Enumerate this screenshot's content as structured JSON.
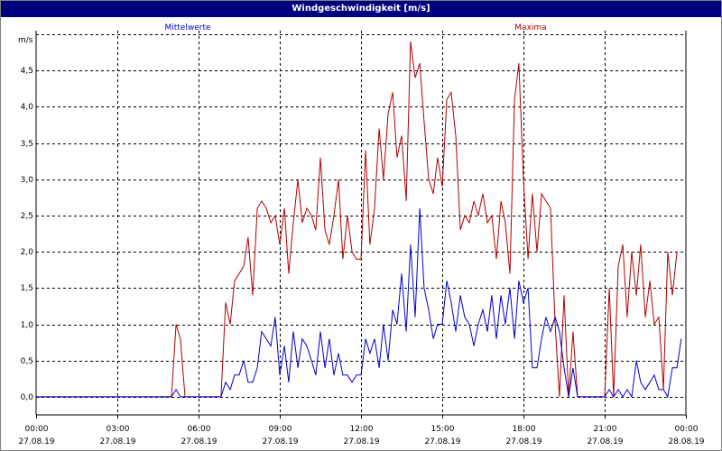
{
  "window": {
    "title": "Windgeschwindigkeit [m/s]"
  },
  "colors": {
    "mean": "#0000cc",
    "max": "#b00000",
    "grid": "#000000",
    "title_bg": "#00007f"
  },
  "chart_data": {
    "type": "line",
    "title": "Windgeschwindigkeit [m/s]",
    "ylabel": "m/s",
    "xlabel": "",
    "ylim": [
      -0.25,
      5.05
    ],
    "y_ticks": [
      0.0,
      0.5,
      1.0,
      1.5,
      2.0,
      2.5,
      3.0,
      3.5,
      4.0,
      4.5
    ],
    "y_tick_labels": [
      "0,0",
      "0,5",
      "1,0",
      "1,5",
      "2,0",
      "2,5",
      "3,0",
      "3,5",
      "4,0",
      "4,5"
    ],
    "xlim_hours": [
      0,
      24
    ],
    "x_ticks_hours": [
      0,
      3,
      6,
      9,
      12,
      15,
      18,
      21,
      24
    ],
    "x_tick_labels": [
      {
        "time": "00:00",
        "date": "27.08.19"
      },
      {
        "time": "03:00",
        "date": "27.08.19"
      },
      {
        "time": "06:00",
        "date": "27.08.19"
      },
      {
        "time": "09:00",
        "date": "27.08.19"
      },
      {
        "time": "12:00",
        "date": "27.08.19"
      },
      {
        "time": "15:00",
        "date": "27.08.19"
      },
      {
        "time": "18:00",
        "date": "27.08.19"
      },
      {
        "time": "21:00",
        "date": "27.08.19"
      },
      {
        "time": "00:00",
        "date": "28.08.19"
      }
    ],
    "grid": true,
    "legend": [
      "Mittelwerte",
      "Maxima"
    ],
    "series": [
      {
        "name": "Mittelwerte",
        "color": "#0000cc",
        "points": [
          [
            0,
            0
          ],
          [
            5.0,
            0
          ],
          [
            5.17,
            0.1
          ],
          [
            5.33,
            0
          ],
          [
            6.0,
            0
          ],
          [
            6.83,
            0
          ],
          [
            7.0,
            0.2
          ],
          [
            7.17,
            0.1
          ],
          [
            7.33,
            0.3
          ],
          [
            7.5,
            0.3
          ],
          [
            7.67,
            0.5
          ],
          [
            7.83,
            0.2
          ],
          [
            8.0,
            0.2
          ],
          [
            8.17,
            0.4
          ],
          [
            8.33,
            0.9
          ],
          [
            8.5,
            0.8
          ],
          [
            8.67,
            0.7
          ],
          [
            8.83,
            1.1
          ],
          [
            9.0,
            0.3
          ],
          [
            9.17,
            0.7
          ],
          [
            9.33,
            0.2
          ],
          [
            9.5,
            0.9
          ],
          [
            9.67,
            0.4
          ],
          [
            9.83,
            0.8
          ],
          [
            10.0,
            0.7
          ],
          [
            10.17,
            0.5
          ],
          [
            10.33,
            0.3
          ],
          [
            10.5,
            0.9
          ],
          [
            10.67,
            0.4
          ],
          [
            10.83,
            0.8
          ],
          [
            11.0,
            0.3
          ],
          [
            11.17,
            0.6
          ],
          [
            11.33,
            0.3
          ],
          [
            11.5,
            0.3
          ],
          [
            11.67,
            0.2
          ],
          [
            11.83,
            0.3
          ],
          [
            12.0,
            0.3
          ],
          [
            12.17,
            0.8
          ],
          [
            12.33,
            0.6
          ],
          [
            12.5,
            0.8
          ],
          [
            12.67,
            0.4
          ],
          [
            12.83,
            1.0
          ],
          [
            13.0,
            0.5
          ],
          [
            13.17,
            1.2
          ],
          [
            13.33,
            1.0
          ],
          [
            13.5,
            1.7
          ],
          [
            13.67,
            0.9
          ],
          [
            13.83,
            2.1
          ],
          [
            14.0,
            1.1
          ],
          [
            14.17,
            2.6
          ],
          [
            14.33,
            1.5
          ],
          [
            14.5,
            1.2
          ],
          [
            14.67,
            0.8
          ],
          [
            14.83,
            1.0
          ],
          [
            15.0,
            1.0
          ],
          [
            15.17,
            1.6
          ],
          [
            15.33,
            1.3
          ],
          [
            15.5,
            0.9
          ],
          [
            15.67,
            1.4
          ],
          [
            15.83,
            1.1
          ],
          [
            16.0,
            1.0
          ],
          [
            16.17,
            0.7
          ],
          [
            16.33,
            1.0
          ],
          [
            16.5,
            1.2
          ],
          [
            16.67,
            0.9
          ],
          [
            16.83,
            1.4
          ],
          [
            17.0,
            0.8
          ],
          [
            17.17,
            1.4
          ],
          [
            17.33,
            1.0
          ],
          [
            17.5,
            1.5
          ],
          [
            17.67,
            0.8
          ],
          [
            17.83,
            1.6
          ],
          [
            18.0,
            1.3
          ],
          [
            18.17,
            1.5
          ],
          [
            18.33,
            0.4
          ],
          [
            18.5,
            0.4
          ],
          [
            18.67,
            0.8
          ],
          [
            18.83,
            1.1
          ],
          [
            19.0,
            0.9
          ],
          [
            19.17,
            1.1
          ],
          [
            19.33,
            0.9
          ],
          [
            19.5,
            0.4
          ],
          [
            19.67,
            0
          ],
          [
            19.83,
            0.4
          ],
          [
            20.0,
            0
          ],
          [
            20.5,
            0
          ],
          [
            21.0,
            0
          ],
          [
            21.17,
            0.1
          ],
          [
            21.33,
            0
          ],
          [
            21.5,
            0.1
          ],
          [
            21.67,
            0
          ],
          [
            21.83,
            0.1
          ],
          [
            22.0,
            0
          ],
          [
            22.17,
            0.5
          ],
          [
            22.33,
            0.2
          ],
          [
            22.5,
            0.1
          ],
          [
            22.67,
            0.2
          ],
          [
            22.83,
            0.3
          ],
          [
            23.0,
            0.1
          ],
          [
            23.17,
            0.1
          ],
          [
            23.33,
            0
          ],
          [
            23.5,
            0.4
          ],
          [
            23.67,
            0.4
          ],
          [
            23.83,
            0.8
          ]
        ]
      },
      {
        "name": "Maxima",
        "color": "#b00000",
        "points": [
          [
            0,
            0
          ],
          [
            5.0,
            0
          ],
          [
            5.17,
            1.0
          ],
          [
            5.33,
            0.8
          ],
          [
            5.5,
            0
          ],
          [
            6.0,
            0
          ],
          [
            6.83,
            0
          ],
          [
            7.0,
            1.3
          ],
          [
            7.17,
            1.0
          ],
          [
            7.33,
            1.6
          ],
          [
            7.5,
            1.7
          ],
          [
            7.67,
            1.8
          ],
          [
            7.83,
            2.2
          ],
          [
            8.0,
            1.4
          ],
          [
            8.17,
            2.6
          ],
          [
            8.33,
            2.7
          ],
          [
            8.5,
            2.6
          ],
          [
            8.67,
            2.4
          ],
          [
            8.83,
            2.5
          ],
          [
            9.0,
            2.1
          ],
          [
            9.17,
            2.6
          ],
          [
            9.33,
            1.7
          ],
          [
            9.5,
            2.4
          ],
          [
            9.67,
            3.0
          ],
          [
            9.83,
            2.4
          ],
          [
            10.0,
            2.6
          ],
          [
            10.17,
            2.5
          ],
          [
            10.33,
            2.3
          ],
          [
            10.5,
            3.3
          ],
          [
            10.67,
            2.3
          ],
          [
            10.83,
            2.1
          ],
          [
            11.0,
            2.5
          ],
          [
            11.17,
            3.0
          ],
          [
            11.33,
            1.9
          ],
          [
            11.5,
            2.5
          ],
          [
            11.67,
            2.0
          ],
          [
            11.83,
            1.9
          ],
          [
            12.0,
            1.9
          ],
          [
            12.17,
            3.4
          ],
          [
            12.33,
            2.1
          ],
          [
            12.5,
            2.6
          ],
          [
            12.67,
            3.7
          ],
          [
            12.83,
            3.0
          ],
          [
            13.0,
            3.9
          ],
          [
            13.17,
            4.2
          ],
          [
            13.33,
            3.3
          ],
          [
            13.5,
            3.6
          ],
          [
            13.67,
            2.7
          ],
          [
            13.83,
            4.9
          ],
          [
            14.0,
            4.4
          ],
          [
            14.17,
            4.6
          ],
          [
            14.33,
            3.8
          ],
          [
            14.5,
            3.0
          ],
          [
            14.67,
            2.8
          ],
          [
            14.83,
            3.3
          ],
          [
            15.0,
            2.9
          ],
          [
            15.17,
            4.1
          ],
          [
            15.33,
            4.2
          ],
          [
            15.5,
            3.6
          ],
          [
            15.67,
            2.3
          ],
          [
            15.83,
            2.5
          ],
          [
            16.0,
            2.4
          ],
          [
            16.17,
            2.7
          ],
          [
            16.33,
            2.5
          ],
          [
            16.5,
            2.8
          ],
          [
            16.67,
            2.4
          ],
          [
            16.83,
            2.5
          ],
          [
            17.0,
            1.9
          ],
          [
            17.17,
            2.7
          ],
          [
            17.33,
            2.4
          ],
          [
            17.5,
            1.7
          ],
          [
            17.67,
            4.1
          ],
          [
            17.83,
            4.6
          ],
          [
            18.0,
            3.0
          ],
          [
            18.17,
            1.9
          ],
          [
            18.33,
            2.8
          ],
          [
            18.5,
            2.0
          ],
          [
            18.67,
            2.8
          ],
          [
            18.83,
            2.7
          ],
          [
            19.0,
            2.6
          ],
          [
            19.17,
            1.0
          ],
          [
            19.33,
            0
          ],
          [
            19.5,
            1.4
          ],
          [
            19.67,
            0
          ],
          [
            19.83,
            0.9
          ],
          [
            20.0,
            0
          ],
          [
            20.5,
            0
          ],
          [
            21.0,
            0
          ],
          [
            21.17,
            1.5
          ],
          [
            21.33,
            0
          ],
          [
            21.5,
            1.8
          ],
          [
            21.67,
            2.1
          ],
          [
            21.83,
            1.1
          ],
          [
            22.0,
            2.0
          ],
          [
            22.17,
            1.4
          ],
          [
            22.33,
            2.1
          ],
          [
            22.5,
            1.1
          ],
          [
            22.67,
            1.6
          ],
          [
            22.83,
            1.0
          ],
          [
            23.0,
            1.1
          ],
          [
            23.17,
            0.1
          ],
          [
            23.33,
            2.0
          ],
          [
            23.5,
            1.4
          ],
          [
            23.67,
            2.0
          ]
        ]
      }
    ]
  }
}
